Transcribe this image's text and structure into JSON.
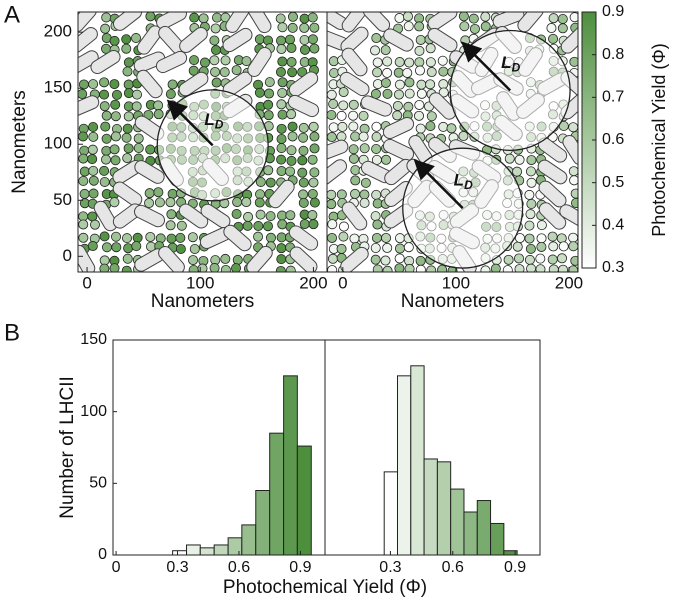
{
  "chart_data": [
    {
      "type": "map",
      "panel": "A",
      "xlabel": "Nanometers",
      "ylabel": "Nanometers",
      "xlim": [
        -8,
        212
      ],
      "ylim": [
        -14,
        218
      ],
      "xticks": [
        0,
        100,
        200
      ],
      "yticks": [
        0,
        50,
        100,
        150,
        200
      ],
      "circles": [
        {
          "x": 111,
          "y": 99,
          "r": 49
        }
      ],
      "ld_label": "L",
      "ld_sub": "D"
    },
    {
      "type": "map",
      "xlabel": "Nanometers",
      "xlim": [
        -14,
        208
      ],
      "ylim": [
        -14,
        218
      ],
      "xticks": [
        0,
        100,
        200
      ],
      "circles": [
        {
          "x": 148,
          "y": 148,
          "r": 53
        },
        {
          "x": 106,
          "y": 43,
          "r": 53
        }
      ],
      "ld_label": "L",
      "ld_sub": "D"
    },
    {
      "type": "colorbar",
      "label": "Photochemical Yield (Φ)",
      "clim": [
        0.3,
        0.9
      ],
      "ticks": [
        0.3,
        0.4,
        0.5,
        0.6,
        0.7,
        0.8,
        0.9
      ],
      "colors": [
        "#ffffff",
        "#4e8f3e"
      ]
    },
    {
      "type": "histogram",
      "panel": "B",
      "ylabel": "Number of LHCII",
      "xlabel": "Photochemical Yield (Φ)",
      "bins": [
        0.276,
        0.344,
        0.411,
        0.479,
        0.547,
        0.614,
        0.682,
        0.75,
        0.818,
        0.885,
        0.953
      ],
      "counts": [
        3,
        7,
        5,
        7,
        12,
        21,
        45,
        85,
        125,
        76
      ],
      "xlim": [
        -0.015,
        1.02
      ],
      "ylim": [
        0,
        150
      ],
      "xticks": [
        0,
        0.3,
        0.6,
        0.9
      ],
      "yticks": [
        0,
        50,
        100,
        150
      ]
    },
    {
      "type": "histogram",
      "bins": [
        0.27,
        0.334,
        0.398,
        0.462,
        0.526,
        0.59,
        0.654,
        0.718,
        0.782,
        0.846,
        0.91
      ],
      "counts": [
        58,
        125,
        132,
        67,
        65,
        46,
        30,
        38,
        22,
        3
      ],
      "xlim": [
        -0.015,
        1.02
      ],
      "ylim": [
        0,
        150
      ],
      "xticks": [
        0.3,
        0.6,
        0.9
      ]
    }
  ]
}
